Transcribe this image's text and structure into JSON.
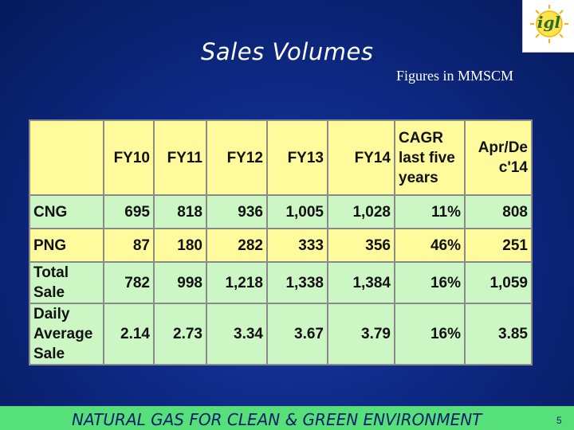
{
  "slide": {
    "title": "Sales Volumes",
    "subtitle": "Figures in MMSCM",
    "footer": "NATURAL GAS FOR CLEAN & GREEN ENVIRONMENT",
    "page_number": "5",
    "logo_text": "igl"
  },
  "table": {
    "headers": [
      "",
      "FY10",
      "FY11",
      "FY12",
      "FY13",
      "FY14",
      "CAGR last five years",
      "Apr/Dec'14"
    ],
    "header_lines": {
      "cagr": [
        "CAGR",
        "last five",
        "years"
      ],
      "ytd": [
        "Apr/De",
        "c'14"
      ]
    },
    "rows": [
      {
        "label_lines": [
          "CNG"
        ],
        "cells": [
          "695",
          "818",
          "936",
          "1,005",
          "1,028",
          "11%",
          "808"
        ]
      },
      {
        "label_lines": [
          "PNG"
        ],
        "cells": [
          "87",
          "180",
          "282",
          "333",
          "356",
          "46%",
          "251"
        ]
      },
      {
        "label_lines": [
          "Total",
          "Sale"
        ],
        "cells": [
          "782",
          "998",
          "1,218",
          "1,338",
          "1,384",
          "16%",
          "1,059"
        ]
      },
      {
        "label_lines": [
          "Daily",
          "Average",
          "Sale"
        ],
        "cells": [
          "2.14",
          "2.73",
          "3.34",
          "3.67",
          "3.79",
          "16%",
          "3.85"
        ]
      }
    ]
  },
  "colors": {
    "background": "#0e2a86",
    "header_row": "#fffb9c",
    "green_row": "#ccf7c5",
    "footer_bar": "#55e07a"
  }
}
